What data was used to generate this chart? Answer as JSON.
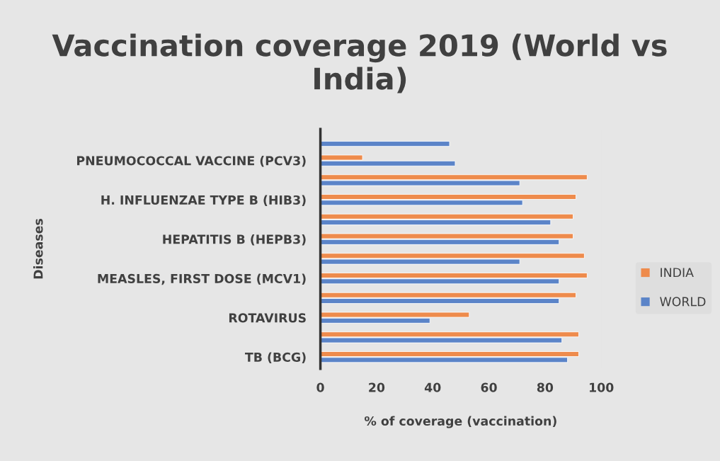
{
  "chart_data": {
    "type": "bar",
    "orientation": "horizontal",
    "title": "Vaccination coverage 2019 (World vs India)",
    "xlabel": "% of coverage (vaccination)",
    "ylabel": "Diseases",
    "categories": [
      null,
      "PNEUMOCOCCAL VACCINE (PCV3)",
      null,
      "H. INFLUENZAE TYPE B (HIB3)",
      null,
      "HEPATITIS B (HEPB3)",
      null,
      "MEASLES, FIRST DOSE (MCV1)",
      null,
      "ROTAVIRUS",
      null,
      "TB (BCG)"
    ],
    "series": [
      {
        "name": "WORLD",
        "color": "#5b84c8",
        "values": [
          46,
          48,
          71,
          72,
          82,
          85,
          71,
          85,
          85,
          39,
          86,
          88
        ]
      },
      {
        "name": "INDIA",
        "color": "#ee8b4c",
        "values": [
          null,
          15,
          95,
          91,
          90,
          90,
          94,
          95,
          91,
          53,
          92,
          92
        ]
      }
    ],
    "xlim": [
      0,
      100
    ],
    "xticks": [
      0,
      20,
      40,
      60,
      80,
      100
    ],
    "grid": false,
    "legend": "right"
  }
}
